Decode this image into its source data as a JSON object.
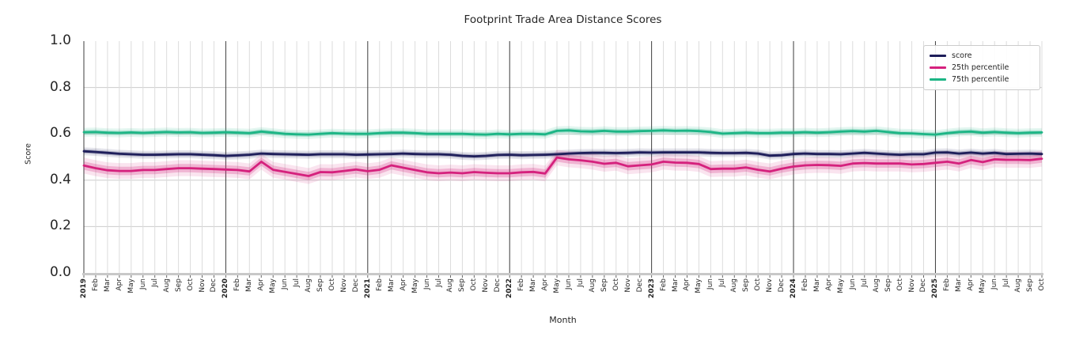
{
  "chart": {
    "title": "Footprint Trade Area Distance Scores",
    "xlabel": "Month",
    "ylabel": "Score"
  },
  "legend": {
    "entries": [
      {
        "label": "score",
        "color": "#1e1e5a"
      },
      {
        "label": "25th percentile",
        "color": "#d5217d"
      },
      {
        "label": "75th percentile",
        "color": "#1cb585"
      }
    ]
  },
  "chart_data": {
    "type": "line",
    "title": "Footprint Trade Area Distance Scores",
    "xlabel": "Month",
    "ylabel": "Score",
    "ylim": [
      0.0,
      1.0
    ],
    "yticks": [
      0.0,
      0.2,
      0.4,
      0.6,
      0.8,
      1.0
    ],
    "grid": true,
    "legend_position": "upper right",
    "year_separators": [
      "2019",
      "2020",
      "2021",
      "2022",
      "2023",
      "2024",
      "2025"
    ],
    "x": [
      "2019",
      "Feb",
      "Mar",
      "Apr",
      "May",
      "Jun",
      "Jul",
      "Aug",
      "Sep",
      "Oct",
      "Nov",
      "Dec",
      "2020",
      "Feb",
      "Mar",
      "Apr",
      "May",
      "Jun",
      "Jul",
      "Aug",
      "Sep",
      "Oct",
      "Nov",
      "Dec",
      "2021",
      "Feb",
      "Mar",
      "Apr",
      "May",
      "Jun",
      "Jul",
      "Aug",
      "Sep",
      "Oct",
      "Nov",
      "Dec",
      "2022",
      "Feb",
      "Mar",
      "Apr",
      "May",
      "Jun",
      "Jul",
      "Aug",
      "Sep",
      "Oct",
      "Nov",
      "Dec",
      "2023",
      "Feb",
      "Mar",
      "Apr",
      "May",
      "Jun",
      "Jul",
      "Aug",
      "Sep",
      "Oct",
      "Nov",
      "Dec",
      "2024",
      "Feb",
      "Mar",
      "Apr",
      "May",
      "Jun",
      "Jul",
      "Aug",
      "Sep",
      "Oct",
      "Nov",
      "Dec",
      "2025",
      "Feb",
      "Mar",
      "Apr",
      "May",
      "Jun",
      "Jul",
      "Aug",
      "Sep",
      "Oct"
    ],
    "series": [
      {
        "name": "score",
        "color": "#1e1e5a",
        "band": 0.009,
        "values": [
          0.525,
          0.522,
          0.518,
          0.514,
          0.512,
          0.51,
          0.51,
          0.511,
          0.512,
          0.512,
          0.51,
          0.508,
          0.505,
          0.507,
          0.51,
          0.515,
          0.513,
          0.512,
          0.511,
          0.51,
          0.512,
          0.512,
          0.512,
          0.51,
          0.511,
          0.512,
          0.513,
          0.515,
          0.513,
          0.512,
          0.512,
          0.51,
          0.505,
          0.503,
          0.505,
          0.509,
          0.51,
          0.508,
          0.509,
          0.51,
          0.512,
          0.515,
          0.517,
          0.518,
          0.518,
          0.517,
          0.518,
          0.52,
          0.519,
          0.52,
          0.52,
          0.52,
          0.52,
          0.518,
          0.517,
          0.517,
          0.518,
          0.515,
          0.506,
          0.508,
          0.513,
          0.515,
          0.513,
          0.513,
          0.512,
          0.515,
          0.518,
          0.515,
          0.512,
          0.51,
          0.512,
          0.512,
          0.519,
          0.52,
          0.515,
          0.519,
          0.515,
          0.518,
          0.513,
          0.514,
          0.515,
          0.513
        ]
      },
      {
        "name": "25th percentile",
        "color": "#d5217d",
        "band": 0.018,
        "values": [
          0.463,
          0.452,
          0.443,
          0.44,
          0.44,
          0.444,
          0.444,
          0.448,
          0.452,
          0.452,
          0.45,
          0.448,
          0.446,
          0.444,
          0.438,
          0.48,
          0.445,
          0.436,
          0.427,
          0.418,
          0.435,
          0.434,
          0.44,
          0.446,
          0.439,
          0.445,
          0.464,
          0.454,
          0.444,
          0.434,
          0.43,
          0.433,
          0.43,
          0.435,
          0.432,
          0.43,
          0.43,
          0.434,
          0.436,
          0.429,
          0.498,
          0.49,
          0.486,
          0.48,
          0.471,
          0.475,
          0.46,
          0.464,
          0.468,
          0.48,
          0.476,
          0.475,
          0.47,
          0.448,
          0.45,
          0.45,
          0.455,
          0.445,
          0.438,
          0.45,
          0.459,
          0.464,
          0.466,
          0.465,
          0.462,
          0.472,
          0.474,
          0.472,
          0.472,
          0.472,
          0.468,
          0.47,
          0.475,
          0.48,
          0.472,
          0.487,
          0.478,
          0.49,
          0.488,
          0.488,
          0.487,
          0.493
        ]
      },
      {
        "name": "75th percentile",
        "color": "#1cb585",
        "band": 0.01,
        "values": [
          0.607,
          0.608,
          0.605,
          0.604,
          0.606,
          0.604,
          0.606,
          0.608,
          0.606,
          0.607,
          0.604,
          0.605,
          0.607,
          0.605,
          0.603,
          0.61,
          0.605,
          0.6,
          0.598,
          0.597,
          0.6,
          0.603,
          0.601,
          0.6,
          0.6,
          0.603,
          0.605,
          0.605,
          0.603,
          0.6,
          0.6,
          0.6,
          0.6,
          0.598,
          0.597,
          0.6,
          0.598,
          0.6,
          0.6,
          0.598,
          0.613,
          0.615,
          0.611,
          0.61,
          0.613,
          0.61,
          0.61,
          0.612,
          0.613,
          0.615,
          0.613,
          0.614,
          0.612,
          0.608,
          0.601,
          0.603,
          0.605,
          0.603,
          0.603,
          0.605,
          0.605,
          0.607,
          0.605,
          0.607,
          0.61,
          0.612,
          0.61,
          0.613,
          0.608,
          0.603,
          0.602,
          0.599,
          0.597,
          0.603,
          0.608,
          0.61,
          0.605,
          0.608,
          0.605,
          0.603,
          0.605,
          0.606
        ]
      }
    ]
  }
}
